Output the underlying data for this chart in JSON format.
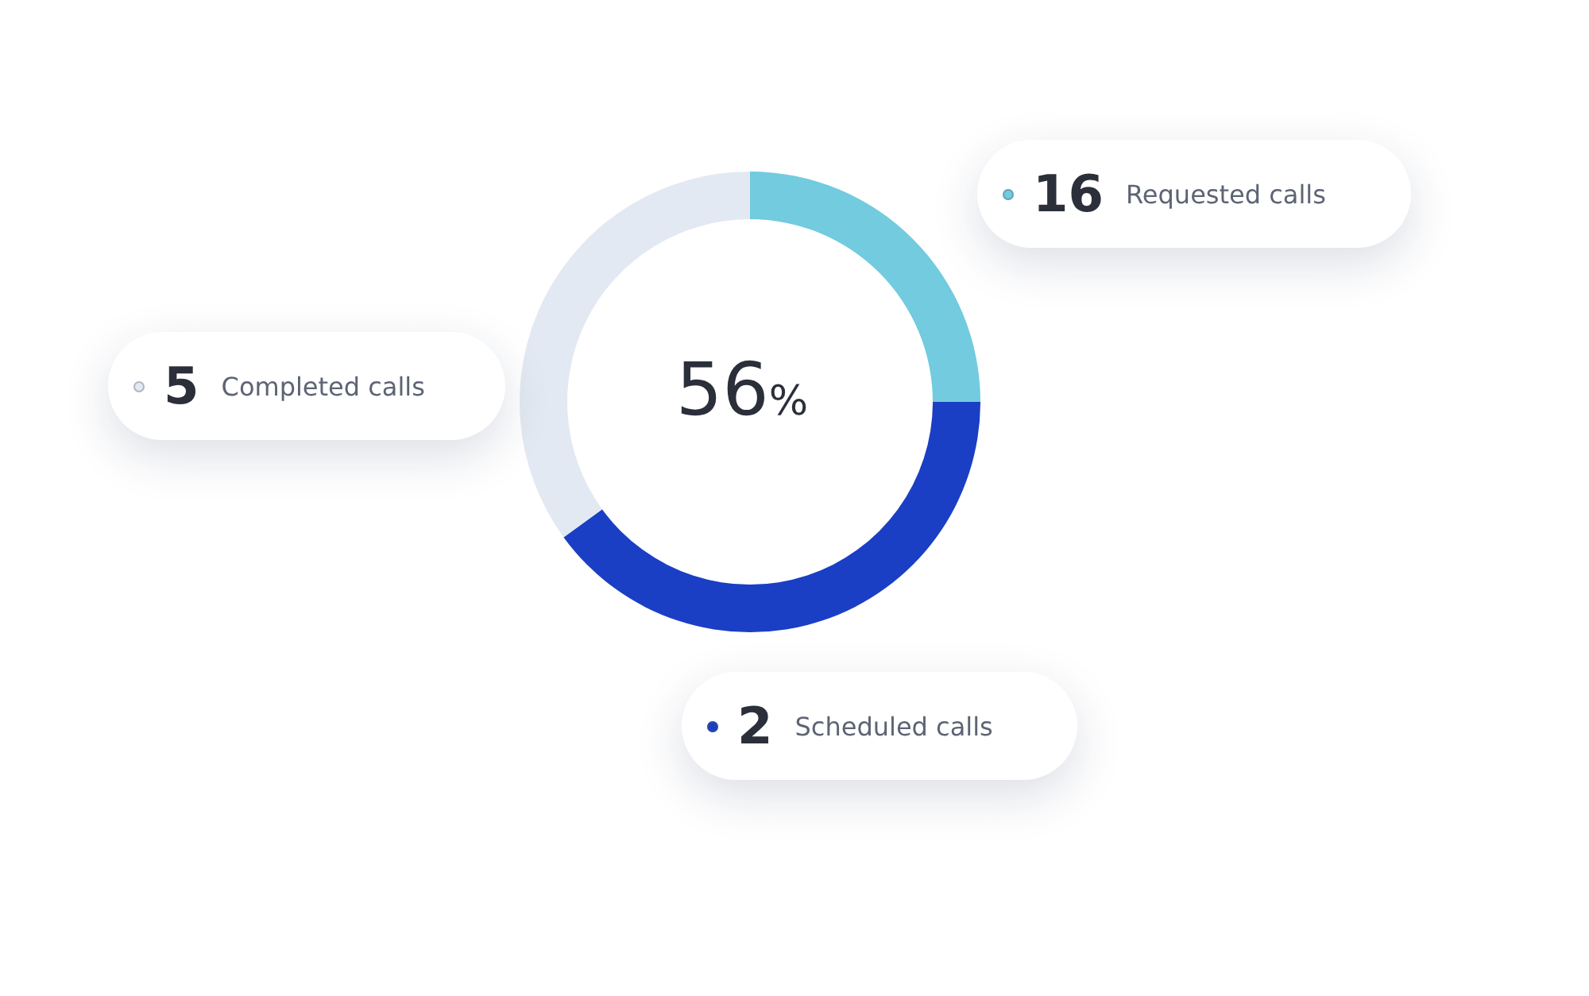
{
  "chart_data": {
    "type": "donut",
    "categories": [
      "Requested calls",
      "Scheduled calls",
      "Completed calls"
    ],
    "values": [
      25,
      40,
      35
    ],
    "colors": [
      "#72cbde",
      "#1a3fc4",
      "#e3e9f2"
    ],
    "annotations": [
      "56%",
      "16",
      "2",
      "5"
    ]
  }
}
